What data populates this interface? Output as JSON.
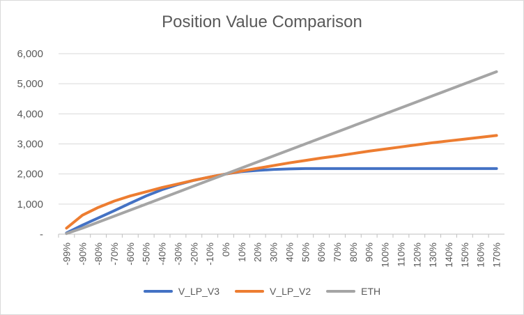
{
  "chart_data": {
    "type": "line",
    "title": "Position Value Comparison",
    "xlabel": "",
    "ylabel": "",
    "ylim": [
      0,
      6000
    ],
    "yticks": [
      0,
      1000,
      2000,
      3000,
      4000,
      5000,
      6000
    ],
    "ytick_labels": [
      "-",
      "1,000",
      "2,000",
      "3,000",
      "4,000",
      "5,000",
      "6,000"
    ],
    "grid": true,
    "legend_position": "bottom",
    "categories": [
      "-99%",
      "-90%",
      "-80%",
      "-70%",
      "-60%",
      "-50%",
      "-40%",
      "-30%",
      "-20%",
      "-10%",
      "0%",
      "10%",
      "20%",
      "30%",
      "40%",
      "50%",
      "60%",
      "70%",
      "80%",
      "90%",
      "100%",
      "110%",
      "120%",
      "130%",
      "140%",
      "150%",
      "160%",
      "170%"
    ],
    "series": [
      {
        "name": "V_LP_V3",
        "color": "#4472C4",
        "values": [
          40,
          300,
          540,
          780,
          1030,
          1270,
          1480,
          1650,
          1790,
          1900,
          2000,
          2080,
          2120,
          2150,
          2170,
          2180,
          2180,
          2180,
          2180,
          2180,
          2180,
          2180,
          2180,
          2180,
          2180,
          2180,
          2180,
          2180
        ]
      },
      {
        "name": "V_LP_V2",
        "color": "#ED7D31",
        "values": [
          200,
          630,
          890,
          1100,
          1270,
          1410,
          1550,
          1670,
          1790,
          1900,
          2000,
          2100,
          2190,
          2280,
          2370,
          2450,
          2530,
          2600,
          2680,
          2760,
          2830,
          2900,
          2970,
          3040,
          3100,
          3160,
          3220,
          3280
        ]
      },
      {
        "name": "ETH",
        "color": "#A5A5A5",
        "values": [
          20,
          200,
          400,
          600,
          800,
          1000,
          1200,
          1400,
          1600,
          1800,
          2000,
          2200,
          2400,
          2600,
          2800,
          3000,
          3200,
          3400,
          3600,
          3800,
          4000,
          4200,
          4400,
          4600,
          4800,
          5000,
          5200,
          5400
        ]
      }
    ]
  }
}
